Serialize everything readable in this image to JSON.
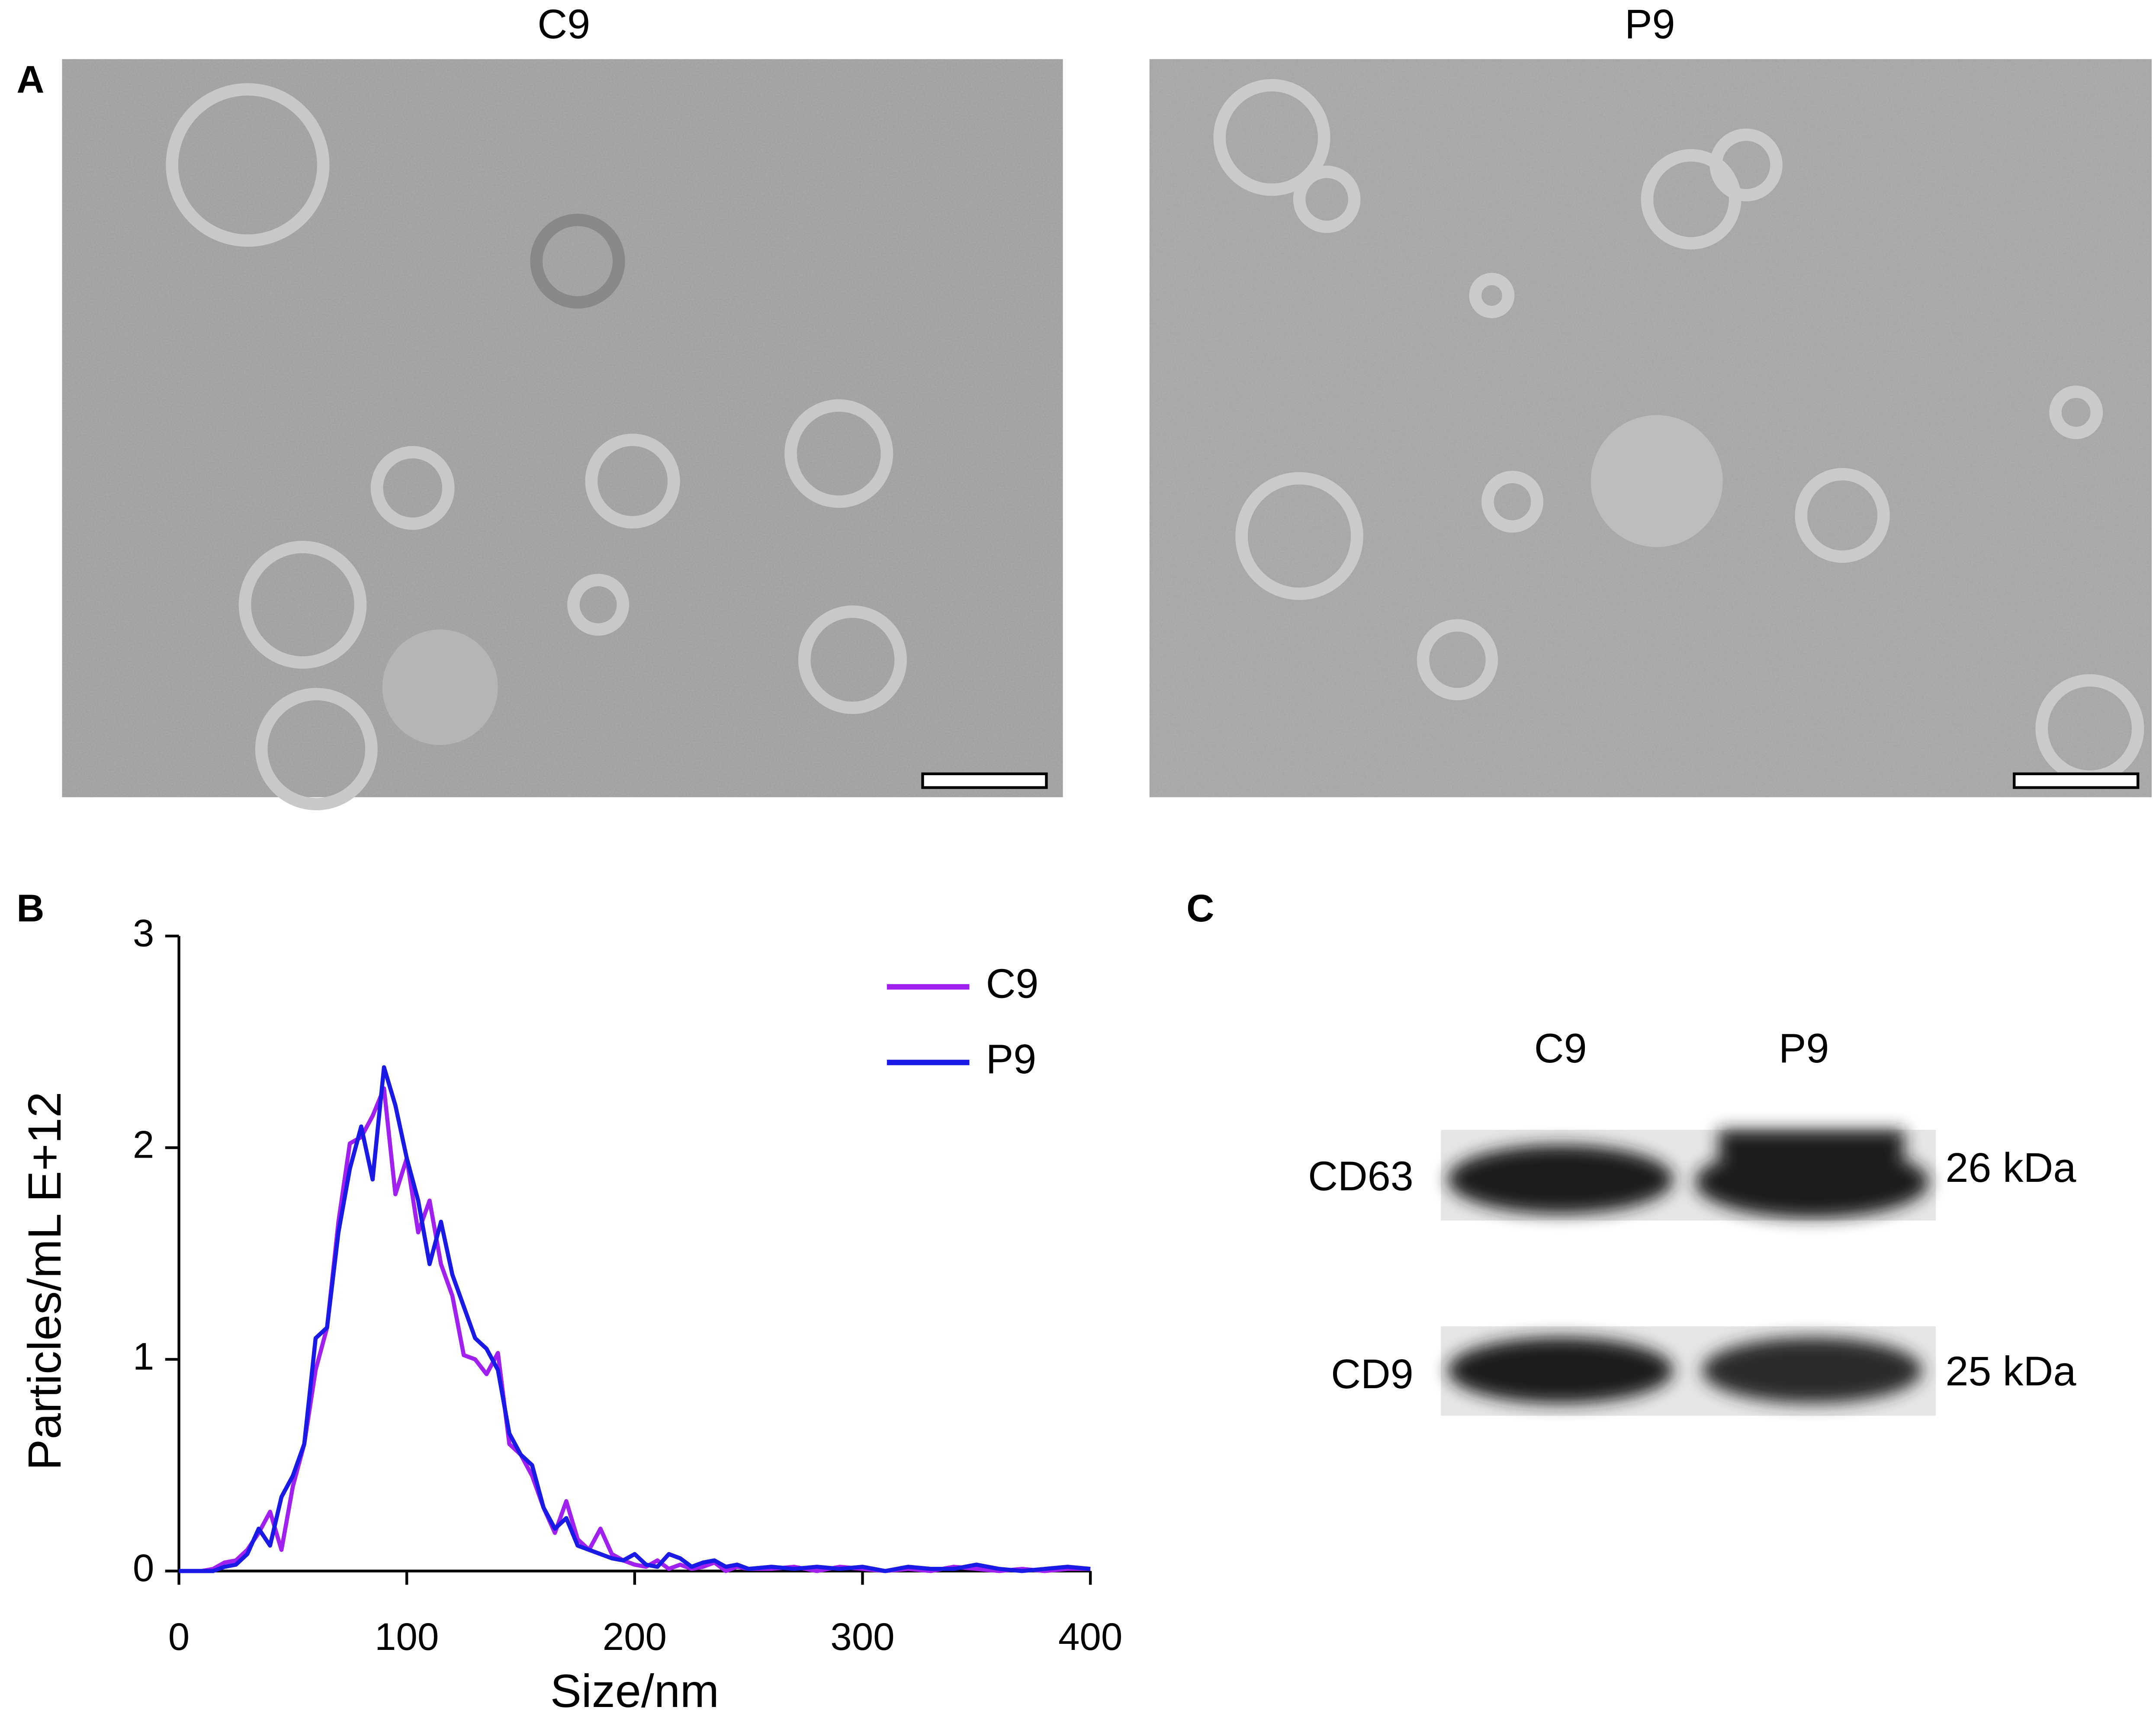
{
  "panel_labels": [
    "A",
    "B",
    "C"
  ],
  "tem_images": {
    "titles": [
      "C9",
      "P9"
    ]
  },
  "western_blot": {
    "lanes": [
      "C9",
      "P9"
    ],
    "bands": [
      {
        "name": "CD63",
        "size": "26 kDa"
      },
      {
        "name": "CD9",
        "size": "25 kDa"
      }
    ]
  },
  "chart_data": {
    "type": "line",
    "x_label": "Size/nm",
    "y_label": "Particles/mL E+12",
    "x": [
      0,
      5,
      10,
      15,
      20,
      25,
      30,
      35,
      40,
      45,
      50,
      55,
      60,
      65,
      70,
      75,
      80,
      85,
      90,
      95,
      100,
      105,
      110,
      115,
      120,
      125,
      130,
      135,
      140,
      145,
      150,
      155,
      160,
      165,
      170,
      175,
      180,
      185,
      190,
      195,
      200,
      205,
      210,
      215,
      220,
      225,
      230,
      235,
      240,
      245,
      250,
      260,
      270,
      280,
      290,
      300,
      310,
      320,
      330,
      340,
      350,
      360,
      370,
      380,
      390,
      400
    ],
    "series": [
      {
        "name": "C9",
        "color": "#a020f0",
        "values": [
          0,
          0,
          0,
          0.01,
          0.04,
          0.05,
          0.1,
          0.18,
          0.28,
          0.1,
          0.4,
          0.6,
          0.95,
          1.15,
          1.65,
          2.02,
          2.05,
          2.15,
          2.28,
          1.78,
          1.95,
          1.6,
          1.75,
          1.45,
          1.3,
          1.02,
          1.0,
          0.93,
          1.03,
          0.6,
          0.55,
          0.45,
          0.3,
          0.18,
          0.33,
          0.15,
          0.1,
          0.2,
          0.08,
          0.05,
          0.03,
          0.02,
          0.05,
          0.01,
          0.03,
          0.01,
          0.02,
          0.04,
          0,
          0.02,
          0.01,
          0.01,
          0.02,
          0,
          0.02,
          0.01,
          0,
          0.01,
          0,
          0.02,
          0.01,
          0,
          0.01,
          0,
          0.01,
          0.01
        ]
      },
      {
        "name": "P9",
        "color": "#1a1ae6",
        "values": [
          0,
          0,
          0,
          0,
          0.02,
          0.03,
          0.08,
          0.2,
          0.12,
          0.35,
          0.45,
          0.6,
          1.1,
          1.15,
          1.6,
          1.9,
          2.1,
          1.85,
          2.38,
          2.2,
          1.95,
          1.75,
          1.45,
          1.65,
          1.4,
          1.25,
          1.1,
          1.05,
          0.95,
          0.65,
          0.55,
          0.5,
          0.3,
          0.2,
          0.25,
          0.12,
          0.1,
          0.08,
          0.06,
          0.05,
          0.08,
          0.03,
          0.02,
          0.08,
          0.06,
          0.02,
          0.04,
          0.05,
          0.02,
          0.03,
          0.01,
          0.02,
          0.01,
          0.02,
          0.01,
          0.02,
          0,
          0.02,
          0.01,
          0.01,
          0.03,
          0.01,
          0,
          0.01,
          0.02,
          0.01
        ]
      }
    ],
    "xlim": [
      0,
      400
    ],
    "xticks": [
      0,
      100,
      200,
      300,
      400
    ],
    "ylim": [
      0,
      3
    ],
    "yticks": [
      0,
      1,
      2,
      3
    ],
    "grid": false,
    "legend": "upper right"
  }
}
